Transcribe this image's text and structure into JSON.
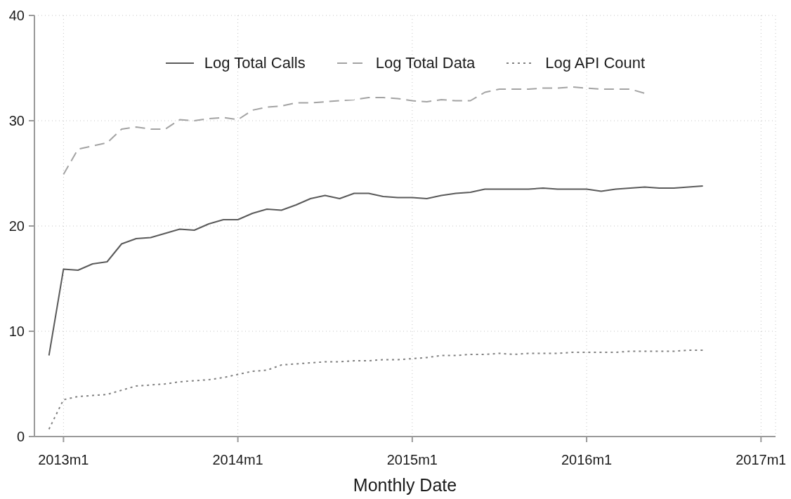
{
  "chart_data": {
    "type": "line",
    "xlabel": "Monthly Date",
    "x": [
      "2012-12",
      "2013-01",
      "2013-02",
      "2013-03",
      "2013-04",
      "2013-05",
      "2013-06",
      "2013-07",
      "2013-08",
      "2013-09",
      "2013-10",
      "2013-11",
      "2013-12",
      "2014-01",
      "2014-02",
      "2014-03",
      "2014-04",
      "2014-05",
      "2014-06",
      "2014-07",
      "2014-08",
      "2014-09",
      "2014-10",
      "2014-11",
      "2014-12",
      "2015-01",
      "2015-02",
      "2015-03",
      "2015-04",
      "2015-05",
      "2015-06",
      "2015-07",
      "2015-08",
      "2015-09",
      "2015-10",
      "2015-11",
      "2015-12",
      "2016-01",
      "2016-02",
      "2016-03",
      "2016-04",
      "2016-05",
      "2016-06",
      "2016-07",
      "2016-08",
      "2016-09"
    ],
    "series": [
      {
        "name": "Log Total Calls",
        "color": "#5a5a5a",
        "line_style": "solid",
        "values": [
          7.7,
          15.9,
          15.8,
          16.4,
          16.6,
          18.3,
          18.8,
          18.9,
          19.3,
          19.7,
          19.6,
          20.2,
          20.6,
          20.6,
          21.2,
          21.6,
          21.5,
          22.0,
          22.6,
          22.9,
          22.6,
          23.1,
          23.1,
          22.8,
          22.7,
          22.7,
          22.6,
          22.9,
          23.1,
          23.2,
          23.5,
          23.5,
          23.5,
          23.5,
          23.6,
          23.5,
          23.5,
          23.5,
          23.3,
          23.5,
          23.6,
          23.7,
          23.6,
          23.6,
          23.7,
          23.8
        ]
      },
      {
        "name": "Log Total Data",
        "color": "#a3a3a3",
        "line_style": "dashed",
        "values": [
          null,
          24.9,
          27.3,
          27.6,
          27.9,
          29.2,
          29.4,
          29.2,
          29.2,
          30.1,
          30.0,
          30.2,
          30.3,
          30.1,
          31.0,
          31.3,
          31.4,
          31.7,
          31.7,
          31.8,
          31.9,
          32.0,
          32.2,
          32.2,
          32.1,
          31.9,
          31.8,
          32.0,
          31.9,
          31.9,
          32.7,
          33.0,
          33.0,
          33.0,
          33.1,
          33.1,
          33.2,
          33.1,
          33.0,
          33.0,
          33.0,
          32.6,
          null,
          null,
          null,
          null
        ]
      },
      {
        "name": "Log API Count",
        "color": "#808080",
        "line_style": "dotted",
        "values": [
          0.7,
          3.5,
          3.8,
          3.9,
          4.0,
          4.4,
          4.8,
          4.9,
          5.0,
          5.2,
          5.3,
          5.4,
          5.6,
          5.9,
          6.2,
          6.3,
          6.8,
          6.9,
          7.0,
          7.1,
          7.1,
          7.2,
          7.2,
          7.3,
          7.3,
          7.4,
          7.5,
          7.7,
          7.7,
          7.8,
          7.8,
          7.9,
          7.8,
          7.9,
          7.9,
          7.9,
          8.0,
          8.0,
          8.0,
          8.0,
          8.1,
          8.1,
          8.1,
          8.1,
          8.2,
          8.2
        ]
      }
    ],
    "xlim": [
      "2012-11",
      "2017-02"
    ],
    "xticks": [
      {
        "value": "2013-01",
        "label": "2013m1"
      },
      {
        "value": "2014-01",
        "label": "2014m1"
      },
      {
        "value": "2015-01",
        "label": "2015m1"
      },
      {
        "value": "2016-01",
        "label": "2016m1"
      },
      {
        "value": "2017-01",
        "label": "2017m1"
      }
    ],
    "ylim": [
      0,
      40
    ],
    "yticks": [
      0,
      10,
      20,
      30,
      40
    ],
    "grid": true,
    "legend": "top"
  }
}
